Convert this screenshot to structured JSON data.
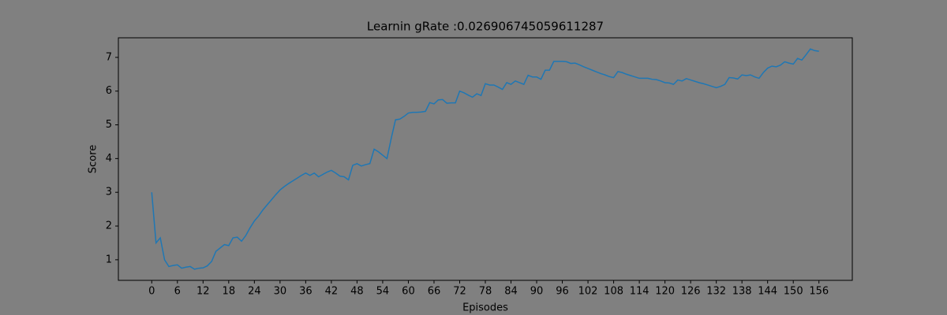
{
  "chart_data": {
    "type": "line",
    "title": "Learnin gRate :0.026906745059611287",
    "x_label": "Episodes",
    "y_label": "Score",
    "color": "#1f77b4",
    "background": "#808080",
    "x": [
      0,
      1,
      2,
      3,
      4,
      5,
      6,
      7,
      8,
      9,
      10,
      11,
      12,
      13,
      14,
      15,
      16,
      17,
      18,
      19,
      20,
      21,
      22,
      23,
      24,
      25,
      26,
      27,
      28,
      29,
      30,
      31,
      32,
      33,
      34,
      35,
      36,
      37,
      38,
      39,
      40,
      41,
      42,
      43,
      44,
      45,
      46,
      47,
      48,
      49,
      50,
      51,
      52,
      53,
      54,
      55,
      56,
      57,
      58,
      59,
      60,
      61,
      62,
      63,
      64,
      65,
      66,
      67,
      68,
      69,
      70,
      71,
      72,
      73,
      74,
      75,
      76,
      77,
      78,
      79,
      80,
      81,
      82,
      83,
      84,
      85,
      86,
      87,
      88,
      89,
      90,
      91,
      92,
      93,
      94,
      95,
      96,
      97,
      98,
      99,
      100,
      101,
      102,
      103,
      104,
      105,
      106,
      107,
      108,
      109,
      110,
      111,
      112,
      113,
      114,
      115,
      116,
      117,
      118,
      119,
      120,
      121,
      122,
      123,
      124,
      125,
      126,
      127,
      128,
      129,
      130,
      131,
      132,
      133,
      134,
      135,
      136,
      137,
      138,
      139,
      140,
      141,
      142,
      143,
      144,
      145,
      146,
      147,
      148,
      149,
      150,
      151,
      152,
      153,
      154,
      155,
      156
    ],
    "values": [
      3.0,
      1.5,
      1.65,
      1.0,
      0.8,
      0.83,
      0.85,
      0.75,
      0.78,
      0.8,
      0.72,
      0.75,
      0.76,
      0.82,
      0.95,
      1.25,
      1.35,
      1.45,
      1.42,
      1.65,
      1.67,
      1.55,
      1.72,
      1.95,
      2.15,
      2.3,
      2.48,
      2.63,
      2.78,
      2.93,
      3.07,
      3.17,
      3.26,
      3.34,
      3.42,
      3.5,
      3.57,
      3.5,
      3.57,
      3.46,
      3.53,
      3.6,
      3.65,
      3.57,
      3.48,
      3.46,
      3.37,
      3.8,
      3.85,
      3.78,
      3.82,
      3.85,
      4.28,
      4.2,
      4.1,
      4.0,
      4.6,
      5.15,
      5.17,
      5.25,
      5.35,
      5.37,
      5.37,
      5.38,
      5.4,
      5.66,
      5.62,
      5.74,
      5.75,
      5.64,
      5.65,
      5.65,
      6.0,
      5.95,
      5.88,
      5.82,
      5.92,
      5.87,
      6.22,
      6.18,
      6.18,
      6.12,
      6.05,
      6.25,
      6.2,
      6.3,
      6.25,
      6.2,
      6.47,
      6.42,
      6.42,
      6.35,
      6.62,
      6.62,
      6.88,
      6.88,
      6.88,
      6.87,
      6.82,
      6.83,
      6.78,
      6.72,
      6.67,
      6.62,
      6.57,
      6.52,
      6.48,
      6.43,
      6.4,
      6.58,
      6.55,
      6.5,
      6.46,
      6.42,
      6.38,
      6.38,
      6.38,
      6.35,
      6.34,
      6.3,
      6.25,
      6.24,
      6.2,
      6.33,
      6.3,
      6.37,
      6.33,
      6.29,
      6.25,
      6.22,
      6.18,
      6.14,
      6.1,
      6.14,
      6.2,
      6.4,
      6.39,
      6.36,
      6.48,
      6.46,
      6.48,
      6.42,
      6.38,
      6.55,
      6.68,
      6.74,
      6.72,
      6.77,
      6.87,
      6.83,
      6.8,
      6.97,
      6.92,
      7.08,
      7.25,
      7.2,
      7.18
    ],
    "xlim": [
      -7.8,
      163.8
    ],
    "ylim": [
      0.39,
      7.58
    ],
    "xticks": [
      0,
      6,
      12,
      18,
      24,
      30,
      36,
      42,
      48,
      54,
      60,
      66,
      72,
      78,
      84,
      90,
      96,
      102,
      108,
      114,
      120,
      126,
      132,
      138,
      144,
      150,
      156
    ],
    "yticks": [
      1,
      2,
      3,
      4,
      5,
      6,
      7
    ],
    "grid": false
  }
}
